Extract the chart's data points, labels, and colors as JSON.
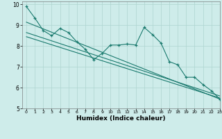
{
  "xlabel": "Humidex (Indice chaleur)",
  "background_color": "#ceecea",
  "grid_color": "#aed4d0",
  "line_color": "#1a7a6e",
  "xlim": [
    -0.5,
    23
  ],
  "ylim": [
    5,
    10.15
  ],
  "yticks": [
    5,
    6,
    7,
    8,
    9,
    10
  ],
  "xticks": [
    0,
    1,
    2,
    3,
    4,
    5,
    6,
    7,
    8,
    9,
    10,
    11,
    12,
    13,
    14,
    15,
    16,
    17,
    18,
    19,
    20,
    21,
    22,
    23
  ],
  "main_x": [
    0,
    1,
    2,
    3,
    4,
    5,
    6,
    7,
    8,
    9,
    10,
    11,
    12,
    13,
    14,
    15,
    16,
    17,
    18,
    19,
    20,
    21,
    22,
    23
  ],
  "main_y": [
    9.9,
    9.35,
    8.75,
    8.5,
    8.85,
    8.65,
    8.2,
    7.85,
    7.35,
    7.65,
    8.05,
    8.05,
    8.1,
    8.05,
    8.9,
    8.55,
    8.15,
    7.25,
    7.1,
    6.5,
    6.5,
    6.15,
    5.85,
    5.45
  ],
  "reg_lines": [
    {
      "x": [
        0,
        23
      ],
      "y": [
        9.15,
        5.45
      ]
    },
    {
      "x": [
        0,
        23
      ],
      "y": [
        8.65,
        5.6
      ]
    },
    {
      "x": [
        0,
        23
      ],
      "y": [
        8.45,
        5.5
      ]
    }
  ]
}
